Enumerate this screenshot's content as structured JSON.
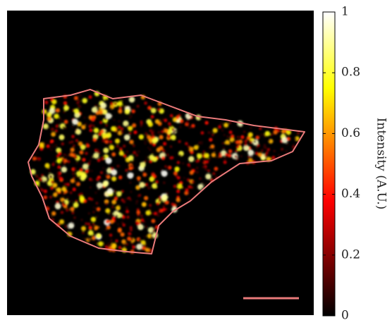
{
  "colorbar": {
    "label": "Intensity (A.U.)",
    "lim": [
      0,
      1
    ],
    "ticks": [
      0,
      0.2,
      0.4,
      0.6,
      0.8,
      1
    ]
  }
}
